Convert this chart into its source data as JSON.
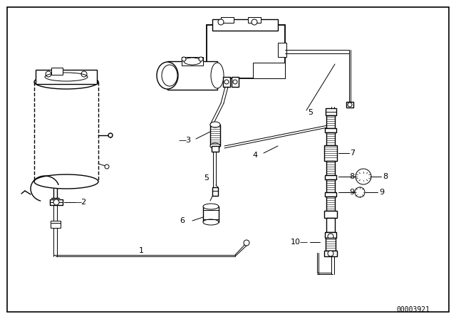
{
  "background_color": "#ffffff",
  "figure_width": 6.4,
  "figure_height": 4.48,
  "dpi": 100,
  "diagram_id": "00003921"
}
